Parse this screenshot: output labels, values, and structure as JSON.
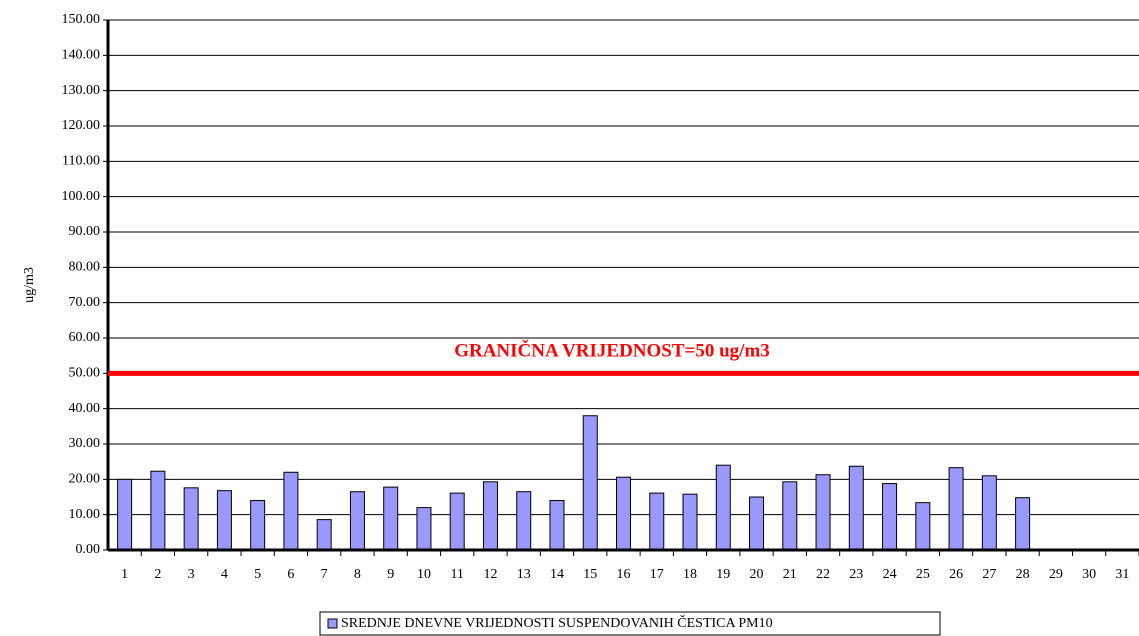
{
  "chart_data": {
    "type": "bar",
    "y_label": "ug/m3",
    "categories": [
      "1",
      "2",
      "3",
      "4",
      "5",
      "6",
      "7",
      "8",
      "9",
      "10",
      "11",
      "12",
      "13",
      "14",
      "15",
      "16",
      "17",
      "18",
      "19",
      "20",
      "21",
      "22",
      "23",
      "24",
      "25",
      "26",
      "27",
      "28",
      "29",
      "30",
      "31"
    ],
    "series": [
      {
        "name": "SREDNJE DNEVNE VRIJEDNOSTI SUSPENDOVANIH ČESTICA PM10",
        "color": "#9999ff",
        "values": [
          20,
          22.3,
          17.6,
          16.8,
          14,
          22,
          8.6,
          16.5,
          17.8,
          12,
          16.1,
          19.3,
          16.5,
          14,
          38,
          20.6,
          16.1,
          15.8,
          24,
          15,
          19.3,
          21.3,
          23.7,
          18.8,
          13.4,
          23.3,
          21,
          14.8,
          null,
          null,
          null
        ]
      }
    ],
    "ylim": [
      0,
      150
    ],
    "yticks": [
      {
        "value": 0,
        "label": "0.00"
      },
      {
        "value": 10,
        "label": "10.00"
      },
      {
        "value": 20,
        "label": "20.00"
      },
      {
        "value": 30,
        "label": "30.00"
      },
      {
        "value": 40,
        "label": "40.00"
      },
      {
        "value": 50,
        "label": "50.00"
      },
      {
        "value": 60,
        "label": "60.00"
      },
      {
        "value": 70,
        "label": "70.00"
      },
      {
        "value": 80,
        "label": "80.00"
      },
      {
        "value": 90,
        "label": "90.00"
      },
      {
        "value": 100,
        "label": "100.00"
      },
      {
        "value": 110,
        "label": "110.00"
      },
      {
        "value": 120,
        "label": "120.00"
      },
      {
        "value": 130,
        "label": "130.00"
      },
      {
        "value": 140,
        "label": "140.00"
      },
      {
        "value": 150,
        "label": "150.00"
      }
    ],
    "grid": true,
    "limit_line": {
      "value": 50,
      "label": "GRANIČNA VRIJEDNOST=50 ug/m3",
      "color": "#ff0000"
    },
    "legend": "bottom"
  }
}
